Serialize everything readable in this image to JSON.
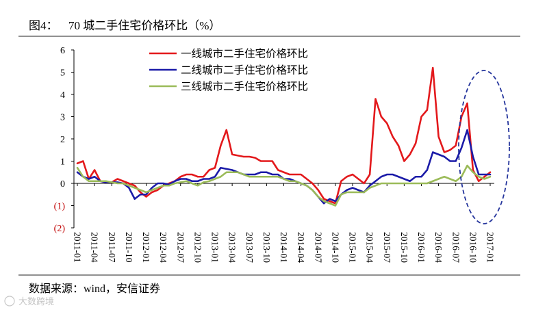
{
  "figure_label": "图4：",
  "footer": {
    "source": "数据来源：wind，安信证券"
  },
  "watermark": {
    "text": "大数跨境"
  },
  "chart_data": {
    "type": "line",
    "title": "70 城二手住宅价格环比（%）",
    "x": [
      "2011-01",
      "2011-02",
      "2011-03",
      "2011-04",
      "2011-05",
      "2011-06",
      "2011-07",
      "2011-08",
      "2011-09",
      "2011-10",
      "2011-11",
      "2011-12",
      "2012-01",
      "2012-02",
      "2012-03",
      "2012-04",
      "2012-05",
      "2012-06",
      "2012-07",
      "2012-08",
      "2012-09",
      "2012-10",
      "2012-11",
      "2012-12",
      "2013-01",
      "2013-02",
      "2013-03",
      "2013-04",
      "2013-05",
      "2013-06",
      "2013-07",
      "2013-08",
      "2013-09",
      "2013-10",
      "2013-11",
      "2013-12",
      "2014-01",
      "2014-02",
      "2014-03",
      "2014-04",
      "2014-05",
      "2014-06",
      "2014-07",
      "2014-08",
      "2014-09",
      "2014-10",
      "2014-11",
      "2014-12",
      "2015-01",
      "2015-02",
      "2015-03",
      "2015-04",
      "2015-05",
      "2015-06",
      "2015-07",
      "2015-08",
      "2015-09",
      "2015-10",
      "2015-11",
      "2015-12",
      "2016-01",
      "2016-02",
      "2016-03",
      "2016-04",
      "2016-05",
      "2016-06",
      "2016-07",
      "2016-08",
      "2016-09",
      "2016-10",
      "2016-11",
      "2016-12",
      "2017-01"
    ],
    "xticks": [
      "2011-01",
      "2011-04",
      "2011-07",
      "2011-10",
      "2012-01",
      "2012-04",
      "2012-07",
      "2012-10",
      "2013-01",
      "2013-04",
      "2013-07",
      "2013-10",
      "2014-01",
      "2014-04",
      "2014-07",
      "2014-10",
      "2015-01",
      "2015-04",
      "2015-07",
      "2015-10",
      "2016-01",
      "2016-04",
      "2016-07",
      "2016-10",
      "2017-01"
    ],
    "ylim": [
      -2,
      6
    ],
    "yticks": [
      6,
      5,
      4,
      3,
      2,
      1,
      0,
      -1,
      -2
    ],
    "ytick_labels": [
      "6",
      "5",
      "4",
      "3",
      "2",
      "1",
      "0",
      "(1)",
      "(2)"
    ],
    "tick_color": "#000000",
    "negative_tick_color": "#c00000",
    "grid": false,
    "legend": "top-left",
    "series": [
      {
        "name": "一线城市二手住宅价格环比",
        "color": "#e3191c",
        "values": [
          0.9,
          1.0,
          0.2,
          0.6,
          0.1,
          0.05,
          0.05,
          0.2,
          0.1,
          0.0,
          -0.1,
          -0.4,
          -0.6,
          -0.4,
          -0.3,
          -0.1,
          0.0,
          0.1,
          0.3,
          0.4,
          0.4,
          0.3,
          0.3,
          0.6,
          0.7,
          1.7,
          2.4,
          1.3,
          1.25,
          1.2,
          1.2,
          1.15,
          1.0,
          1.0,
          1.0,
          0.6,
          0.5,
          0.4,
          0.4,
          0.4,
          0.2,
          0.0,
          -0.3,
          -0.7,
          -0.8,
          -0.9,
          0.1,
          0.3,
          0.4,
          0.2,
          0.0,
          0.4,
          3.8,
          3.0,
          2.7,
          2.1,
          1.7,
          1.0,
          1.3,
          1.8,
          3.0,
          3.3,
          5.2,
          2.1,
          1.4,
          1.5,
          1.7,
          3.0,
          3.6,
          0.6,
          0.1,
          0.3,
          0.5
        ]
      },
      {
        "name": "二线城市二手住宅价格环比",
        "color": "#1b1ba8",
        "values": [
          0.5,
          0.3,
          0.2,
          0.3,
          0.1,
          0.05,
          0.05,
          0.05,
          0.0,
          -0.2,
          -0.7,
          -0.5,
          -0.5,
          -0.2,
          0.0,
          0.0,
          -0.05,
          0.1,
          0.2,
          0.2,
          0.1,
          0.1,
          0.2,
          0.2,
          0.3,
          0.7,
          0.65,
          0.6,
          0.5,
          0.4,
          0.4,
          0.4,
          0.5,
          0.5,
          0.4,
          0.4,
          0.2,
          0.2,
          0.1,
          0.0,
          -0.1,
          -0.3,
          -0.6,
          -0.9,
          -0.7,
          -0.8,
          -0.5,
          -0.3,
          -0.2,
          -0.3,
          -0.4,
          -0.1,
          0.1,
          0.3,
          0.4,
          0.4,
          0.3,
          0.2,
          0.1,
          0.3,
          0.3,
          0.6,
          1.4,
          1.3,
          1.2,
          1.0,
          1.0,
          1.6,
          2.4,
          1.2,
          0.4,
          0.4,
          0.4
        ]
      },
      {
        "name": "三线城市二手住宅价格环比",
        "color": "#9bbb59",
        "values": [
          0.7,
          0.3,
          0.1,
          0.1,
          0.1,
          0.1,
          0.05,
          0.0,
          0.0,
          -0.1,
          -0.2,
          -0.3,
          -0.4,
          -0.3,
          -0.2,
          -0.1,
          -0.1,
          0.0,
          0.05,
          0.1,
          0.0,
          -0.1,
          0.05,
          0.1,
          0.2,
          0.3,
          0.5,
          0.5,
          0.5,
          0.4,
          0.3,
          0.3,
          0.3,
          0.3,
          0.3,
          0.3,
          0.2,
          0.1,
          0.1,
          0.0,
          -0.1,
          -0.3,
          -0.6,
          -0.8,
          -0.9,
          -1.0,
          -0.5,
          -0.4,
          -0.4,
          -0.4,
          -0.4,
          -0.2,
          -0.1,
          0.0,
          0.0,
          0.0,
          0.0,
          0.0,
          0.0,
          0.0,
          0.0,
          0.0,
          0.1,
          0.2,
          0.3,
          0.2,
          0.1,
          0.3,
          0.8,
          0.5,
          0.3,
          0.2,
          0.3
        ]
      }
    ]
  }
}
